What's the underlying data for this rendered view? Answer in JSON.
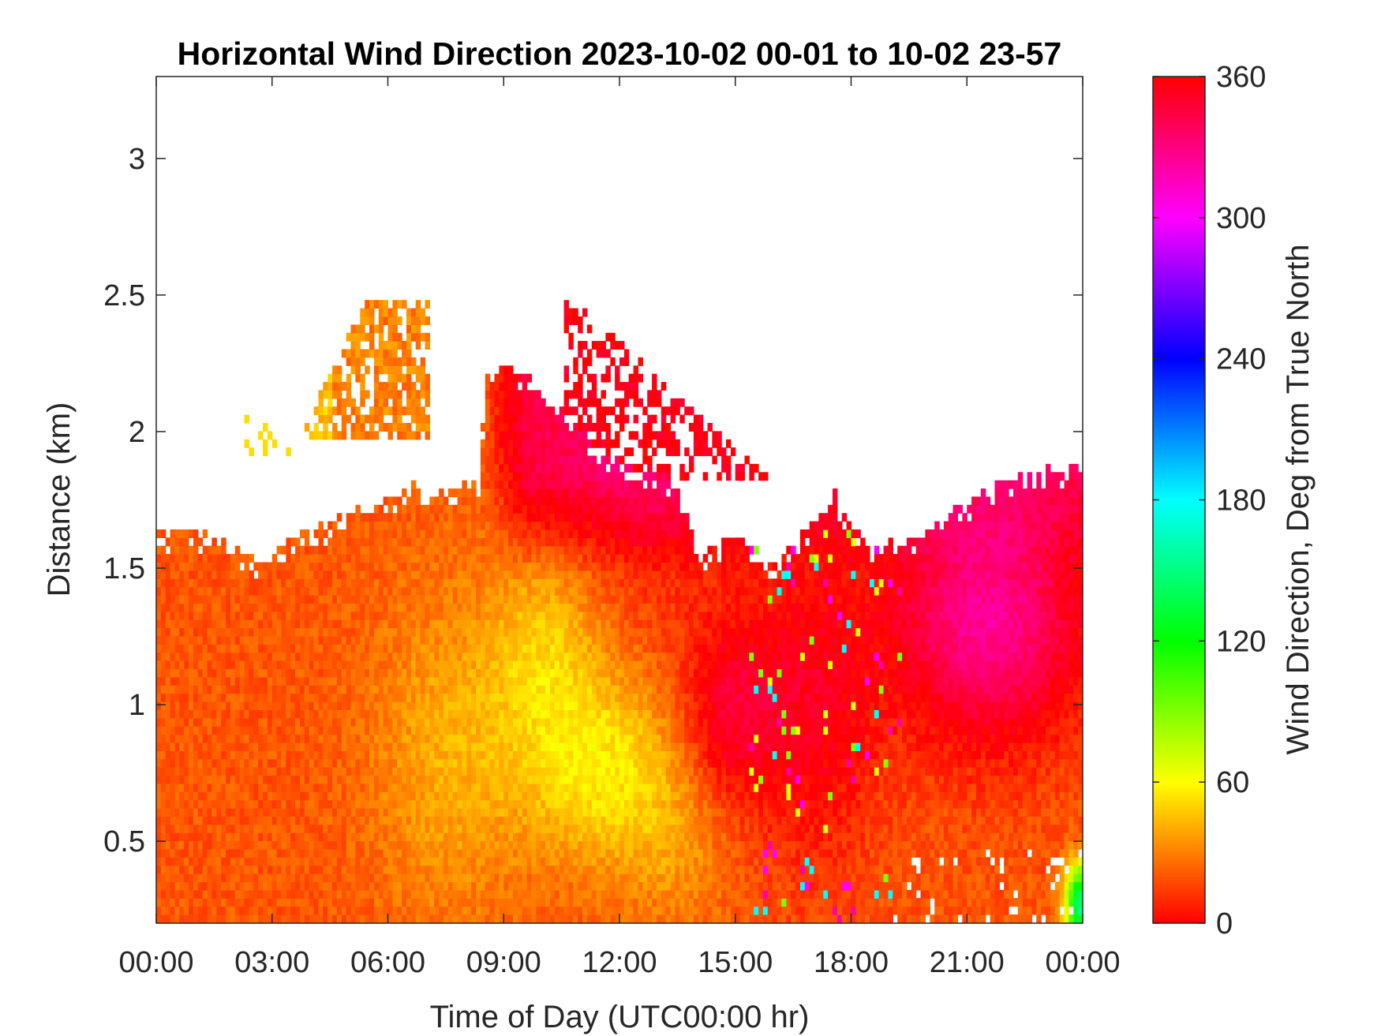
{
  "chart_data": {
    "type": "heatmap",
    "title": "Horizontal Wind Direction 2023-10-02 00-01 to 10-02 23-57",
    "xlabel": "Time of Day (UTC00:00 hr)",
    "ylabel": "Distance (km)",
    "colorbar_label": "Wind Direction, Deg from True North",
    "x_unit": "hours",
    "xlim": [
      0,
      24
    ],
    "ylim": [
      0.2,
      3.3
    ],
    "x_ticks": [
      0,
      3,
      6,
      9,
      12,
      15,
      18,
      21,
      24
    ],
    "x_tick_labels": [
      "00:00",
      "03:00",
      "06:00",
      "09:00",
      "12:00",
      "15:00",
      "18:00",
      "21:00",
      "00:00"
    ],
    "y_ticks": [
      0.5,
      1,
      1.5,
      2,
      2.5,
      3
    ],
    "y_tick_labels": [
      "0.5",
      "1",
      "1.5",
      "2",
      "2.5",
      "3"
    ],
    "clim": [
      0,
      360
    ],
    "colorbar_ticks": [
      0,
      60,
      120,
      180,
      240,
      300,
      360
    ],
    "colorbar_tick_labels": [
      "0",
      "60",
      "120",
      "180",
      "240",
      "300",
      "360"
    ],
    "colormap": "hsv",
    "grid": false,
    "top_boundary": [
      [
        0,
        1.6
      ],
      [
        1,
        1.63
      ],
      [
        2,
        1.57
      ],
      [
        2.7,
        1.5
      ],
      [
        3.5,
        1.6
      ],
      [
        5,
        1.7
      ],
      [
        6,
        1.74
      ],
      [
        6.5,
        1.78
      ],
      [
        7.5,
        1.76
      ],
      [
        8.3,
        1.8
      ],
      [
        8.5,
        2.2
      ],
      [
        9.5,
        2.22
      ],
      [
        10.3,
        2.1
      ],
      [
        11,
        2.0
      ],
      [
        11.6,
        1.9
      ],
      [
        12.5,
        1.85
      ],
      [
        13.3,
        1.8
      ],
      [
        14,
        1.55
      ],
      [
        15,
        1.6
      ],
      [
        15.9,
        1.5
      ],
      [
        16.6,
        1.6
      ],
      [
        17.5,
        1.75
      ],
      [
        18.5,
        1.55
      ],
      [
        19.5,
        1.6
      ],
      [
        20.5,
        1.7
      ],
      [
        22,
        1.8
      ],
      [
        23.6,
        1.85
      ],
      [
        24,
        1.9
      ]
    ],
    "upper_layer": {
      "x_range": [
        3.8,
        7.0
      ],
      "y_range": [
        1.95,
        2.55
      ]
    },
    "upper_right_patch": {
      "x_range": [
        10.5,
        16.0
      ],
      "y_range": [
        1.8,
        2.55
      ]
    },
    "direction_regions": [
      {
        "x_range": [
          0,
          6
        ],
        "y_range": [
          0.2,
          1.6
        ],
        "direction_deg": 18
      },
      {
        "x_range": [
          6,
          9
        ],
        "y_range": [
          0.2,
          1.75
        ],
        "direction_deg": 35
      },
      {
        "x_range": [
          8.5,
          14
        ],
        "y_range": [
          0.4,
          1.0
        ],
        "direction_deg": 55
      },
      {
        "x_range": [
          8.5,
          14
        ],
        "y_range": [
          1.6,
          2.2
        ],
        "direction_deg": 350
      },
      {
        "x_range": [
          14,
          16
        ],
        "y_range": [
          0.6,
          1.5
        ],
        "direction_deg": 5
      },
      {
        "x_range": [
          16,
          24
        ],
        "y_range": [
          0.9,
          1.9
        ],
        "direction_deg": 340
      },
      {
        "x_range": [
          16,
          24
        ],
        "y_range": [
          0.2,
          0.9
        ],
        "direction_deg": 15
      },
      {
        "x_range": [
          23.5,
          24
        ],
        "y_range": [
          0.2,
          0.5
        ],
        "direction_deg": 150
      }
    ]
  }
}
